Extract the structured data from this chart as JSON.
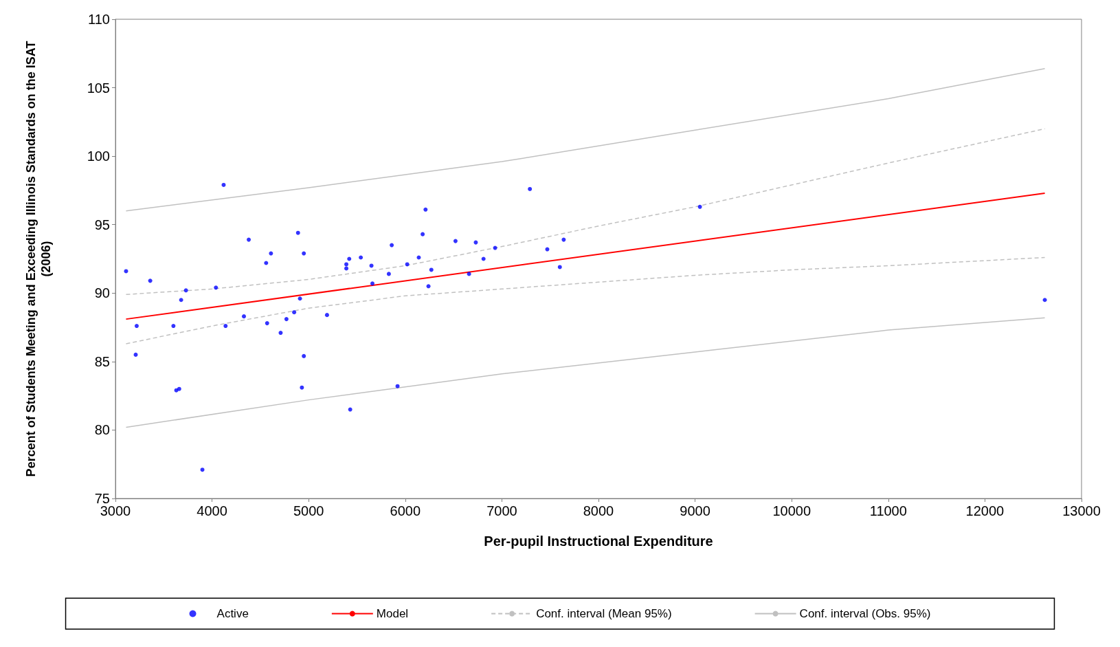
{
  "chart_data": {
    "type": "scatter",
    "xlabel": "Per-pupil Instructional Expenditure",
    "ylabel": "Percent of Students Meeting and Exceeding Illinois Standards on the ISAT\n(2006)",
    "xlim": [
      3000,
      13000
    ],
    "xticks": [
      3000,
      4000,
      5000,
      6000,
      7000,
      8000,
      9000,
      10000,
      11000,
      12000,
      13000
    ],
    "ylim": [
      75,
      110
    ],
    "yticks": [
      75,
      80,
      85,
      90,
      95,
      100,
      105,
      110
    ],
    "grid": false,
    "legend": "bottom",
    "series": [
      {
        "name": "Active",
        "marker": "circle",
        "color": "#0000ff",
        "x": [
          3110,
          3210,
          3220,
          3360,
          3600,
          3630,
          3660,
          3680,
          3730,
          3900,
          4040,
          4120,
          4140,
          4330,
          4380,
          4560,
          4570,
          4610,
          4710,
          4770,
          4850,
          4890,
          4910,
          4930,
          4950,
          4950,
          5190,
          5390,
          5390,
          5420,
          5430,
          5540,
          5650,
          5660,
          5830,
          5860,
          5920,
          6020,
          6140,
          6180,
          6210,
          6240,
          6270,
          6520,
          6660,
          6730,
          6810,
          6930,
          7290,
          7470,
          7600,
          7640,
          9050,
          12620
        ],
        "values": [
          91.6,
          85.5,
          87.6,
          90.9,
          87.6,
          82.9,
          83.0,
          89.5,
          90.2,
          77.1,
          90.4,
          97.9,
          87.6,
          88.3,
          93.9,
          92.2,
          87.8,
          92.9,
          87.1,
          88.1,
          88.6,
          94.4,
          89.6,
          83.1,
          85.4,
          92.9,
          88.4,
          92.1,
          91.8,
          92.5,
          81.5,
          92.6,
          92.0,
          90.7,
          91.4,
          93.5,
          83.2,
          92.1,
          92.6,
          94.3,
          96.1,
          90.5,
          91.7,
          93.8,
          91.4,
          93.7,
          92.5,
          93.3,
          97.6,
          93.2,
          91.9,
          93.9,
          96.3,
          89.5
        ]
      },
      {
        "name": "Model",
        "type": "line",
        "color": "#ff0000",
        "line_style": "solid",
        "x": [
          3110,
          12620
        ],
        "values": [
          88.1,
          97.3
        ]
      },
      {
        "name": "Conf. interval (Mean 95%)",
        "type": "line",
        "color": "#c0c0c0",
        "line_style": "dashed",
        "x": [
          3110,
          4000,
          5000,
          6000,
          7000,
          8000,
          9000,
          10000,
          11000,
          12620
        ],
        "values": [
          89.9,
          90.3,
          91.0,
          92.0,
          93.4,
          94.9,
          96.3,
          97.9,
          99.5,
          102.0
        ]
      },
      {
        "type": "line",
        "color": "#c0c0c0",
        "line_style": "dashed",
        "x": [
          3110,
          4000,
          5000,
          6000,
          7000,
          8000,
          9000,
          10000,
          11000,
          12620
        ],
        "values": [
          86.3,
          87.6,
          88.9,
          89.8,
          90.3,
          90.8,
          91.3,
          91.7,
          92.0,
          92.6
        ]
      },
      {
        "name": "Conf. interval (Obs. 95%)",
        "type": "line",
        "color": "#c0c0c0",
        "line_style": "solid",
        "x": [
          3110,
          5000,
          7000,
          9000,
          11000,
          12620
        ],
        "values": [
          96.0,
          97.7,
          99.6,
          101.9,
          104.2,
          106.4
        ]
      },
      {
        "type": "line",
        "color": "#c0c0c0",
        "line_style": "solid",
        "x": [
          3110,
          5000,
          7000,
          9000,
          11000,
          12620
        ],
        "values": [
          80.2,
          82.2,
          84.1,
          85.7,
          87.3,
          88.2
        ]
      }
    ]
  }
}
